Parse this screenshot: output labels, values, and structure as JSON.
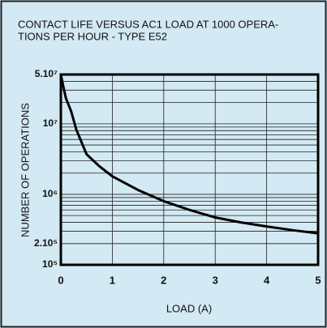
{
  "chart_data": {
    "type": "line",
    "title": [
      "CONTACT LIFE VERSUS AC1 LOAD AT 1000 OPERA-",
      "TIONS PER HOUR - TYPE E52"
    ],
    "x_label": "LOAD (A)",
    "y_label": "NUMBER OF OPERATIONS",
    "x": [
      0,
      0.05,
      0.1,
      0.2,
      0.3,
      0.5,
      0.75,
      1,
      1.5,
      2,
      2.5,
      3,
      3.5,
      4,
      4.5,
      5
    ],
    "values": [
      50000000,
      33000000,
      23000000,
      15000000,
      8300000,
      3700000,
      2500000,
      1800000,
      1150000,
      800000,
      600000,
      470000,
      400000,
      350000,
      310000,
      280000
    ],
    "color": "#000000",
    "xlim": [
      0,
      5
    ],
    "xticks": [
      0,
      1,
      2,
      3,
      4,
      5
    ],
    "ylim": [
      100000,
      50000000
    ],
    "yscale": "log",
    "yticks": [
      {
        "value": 50000000,
        "label": "5.10⁷"
      },
      {
        "value": 10000000,
        "label": "10⁷"
      },
      {
        "value": 1000000,
        "label": "10⁶"
      },
      {
        "value": 200000,
        "label": "2.10⁵"
      },
      {
        "value": 100000,
        "label": "10⁵"
      }
    ],
    "y_minor_ticks": [
      300000,
      400000,
      500000,
      600000,
      700000,
      800000,
      900000,
      2000000,
      3000000,
      4000000,
      5000000,
      6000000,
      7000000,
      8000000,
      9000000,
      20000000,
      30000000,
      40000000
    ],
    "grid": true
  }
}
